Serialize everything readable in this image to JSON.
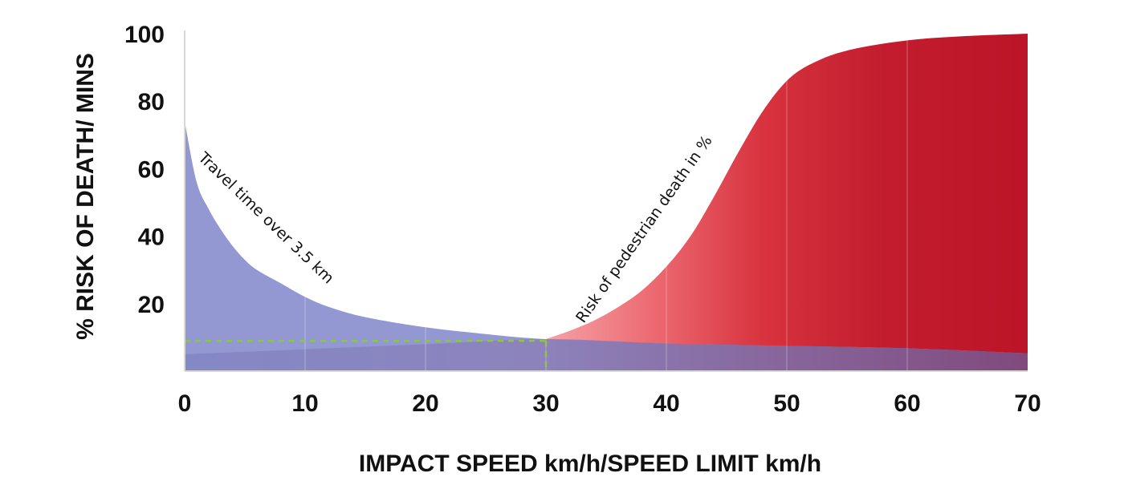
{
  "chart_data": {
    "type": "area",
    "xlabel": "IMPACT SPEED km/h/SPEED LIMIT km/h",
    "ylabel": "% RISK OF DEATH/ MINS",
    "xlim": [
      0,
      70
    ],
    "ylim": [
      0,
      100
    ],
    "x_ticks": [
      "0",
      "10",
      "20",
      "30",
      "40",
      "50",
      "60",
      "70"
    ],
    "y_ticks": [
      "20",
      "40",
      "60",
      "80",
      "100"
    ],
    "grid": true,
    "series": [
      {
        "name": "Travel time over 3.5 km",
        "color": "#8c90cf",
        "x": [
          0,
          1,
          2,
          3,
          4,
          5,
          6,
          8,
          10,
          12,
          15,
          20,
          25,
          30,
          40,
          50,
          60,
          70
        ],
        "y": [
          74,
          56,
          48,
          42,
          37,
          33,
          30,
          26,
          22,
          19,
          16,
          13,
          11,
          9.5,
          8.2,
          7.5,
          6.8,
          5.3
        ]
      },
      {
        "name": "Risk of pedestrian death in %",
        "color": "#c41c2f",
        "x": [
          30,
          32,
          34,
          36,
          38,
          40,
          42,
          44,
          46,
          48,
          50,
          52,
          55,
          60,
          65,
          70
        ],
        "y": [
          9.5,
          12,
          15,
          19,
          24,
          31,
          40,
          52,
          65,
          77,
          86,
          91,
          95,
          98,
          99.3,
          100
        ]
      }
    ],
    "annotations": [
      {
        "type": "reference-line",
        "style": "dashed",
        "color": "#8dc63f",
        "at_x": 30,
        "at_y": 9
      }
    ]
  }
}
